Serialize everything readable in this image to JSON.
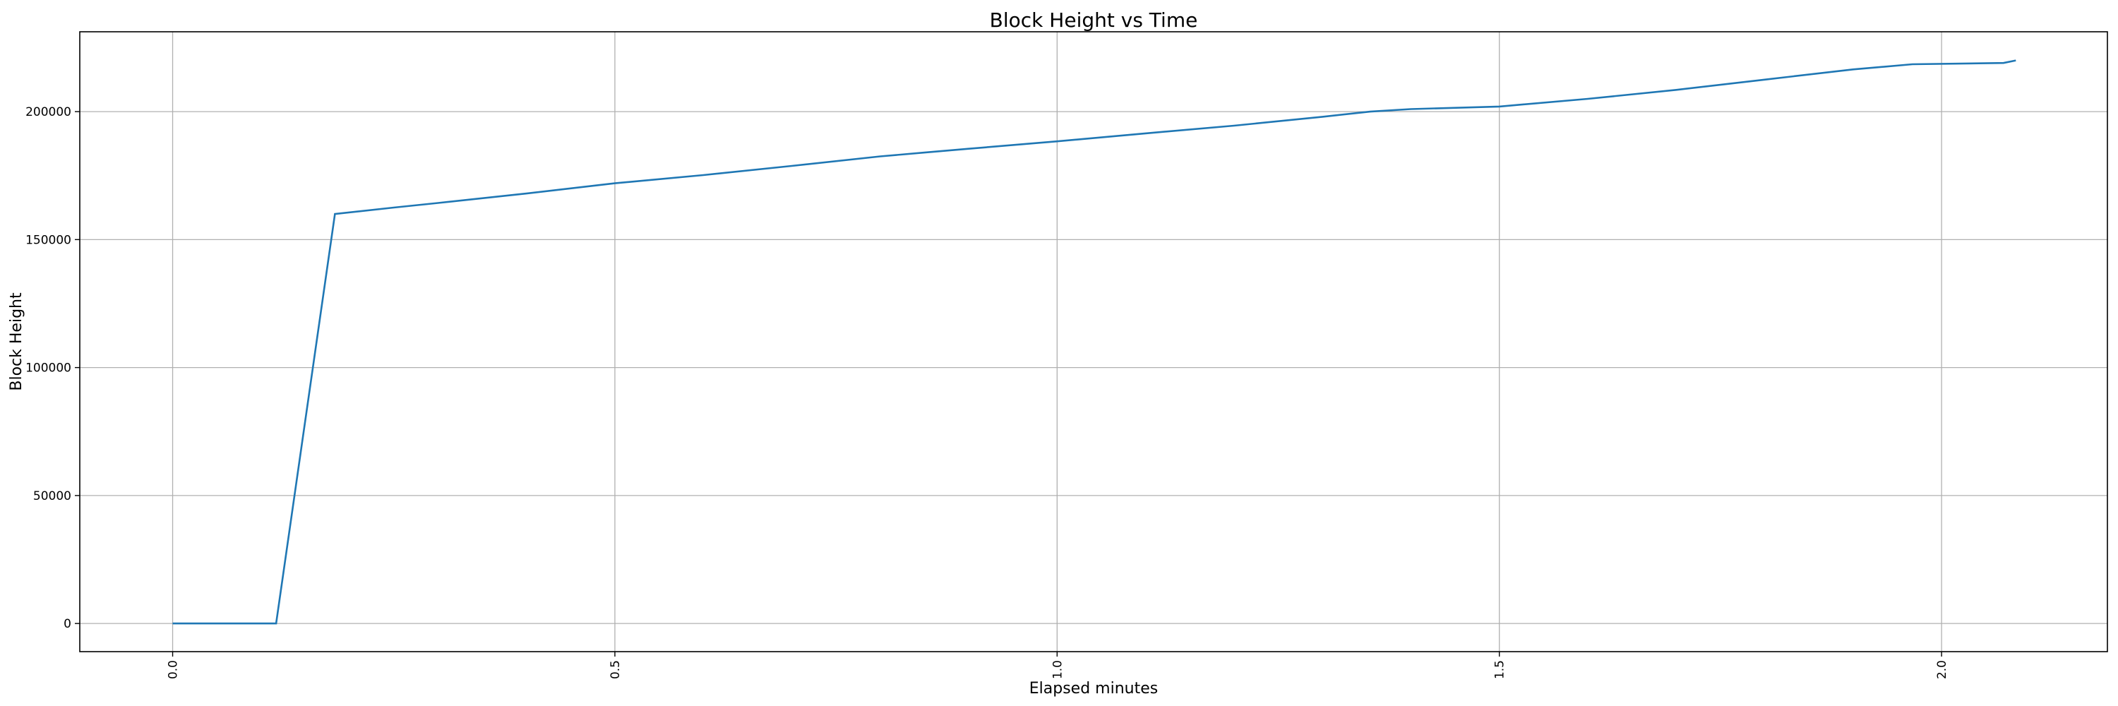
{
  "chart_data": {
    "type": "line",
    "title": "Block Height vs Time",
    "xlabel": "Elapsed minutes",
    "ylabel": "Block Height",
    "xlim": [
      -0.105,
      2.1875
    ],
    "ylim": [
      -11000,
      231200
    ],
    "xticks": [
      0.0,
      0.5,
      1.0,
      1.5,
      2.0
    ],
    "xtick_labels": [
      "0.0",
      "0.5",
      "1.0",
      "1.5",
      "2.0"
    ],
    "yticks": [
      0,
      50000,
      100000,
      150000,
      200000
    ],
    "ytick_labels": [
      "0",
      "50000",
      "100000",
      "150000",
      "200000"
    ],
    "grid": true,
    "line_color": "#1f77b4",
    "x": [
      0.0,
      0.117,
      0.1835,
      0.25,
      0.3,
      0.4,
      0.5,
      0.6,
      0.7,
      0.8,
      0.85,
      0.9,
      1.0,
      1.1,
      1.2,
      1.3,
      1.354,
      1.4,
      1.5,
      1.6,
      1.7,
      1.8,
      1.9,
      1.967,
      2.07,
      2.084
    ],
    "y": [
      0,
      0,
      160000,
      162500,
      164300,
      168000,
      172000,
      175200,
      178800,
      182500,
      184000,
      185500,
      188400,
      191500,
      194500,
      198000,
      200000,
      201000,
      202000,
      205000,
      208500,
      212500,
      216500,
      218500,
      219000,
      220000
    ]
  }
}
